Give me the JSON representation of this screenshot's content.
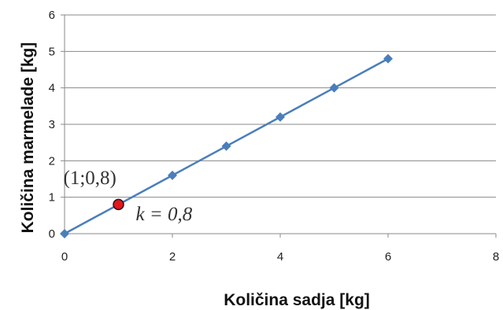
{
  "chart_data": {
    "type": "line",
    "x": [
      0,
      1,
      2,
      3,
      4,
      5,
      6
    ],
    "series": [
      {
        "values": [
          0,
          0.8,
          1.6,
          2.4,
          3.2,
          4.0,
          4.8
        ],
        "color": "#4a7ebb",
        "marker": "diamond"
      }
    ],
    "xlabel": "Količina sadja [kg]",
    "ylabel": "Količina marmelade [kg]",
    "xlim": [
      0,
      8
    ],
    "ylim": [
      0,
      6
    ],
    "xticks": [
      "0",
      "2",
      "4",
      "6",
      "8"
    ],
    "yticks": [
      "0",
      "1",
      "2",
      "3",
      "4",
      "5",
      "6"
    ],
    "grid": "horizontal",
    "highlight_point": {
      "x": 1,
      "y": 0.8,
      "color": "#e8141c"
    },
    "annotations": [
      {
        "text": "(1;0,8)",
        "target": "highlight_point"
      },
      {
        "text": "k = 0,8",
        "target": "line_slope"
      }
    ]
  }
}
